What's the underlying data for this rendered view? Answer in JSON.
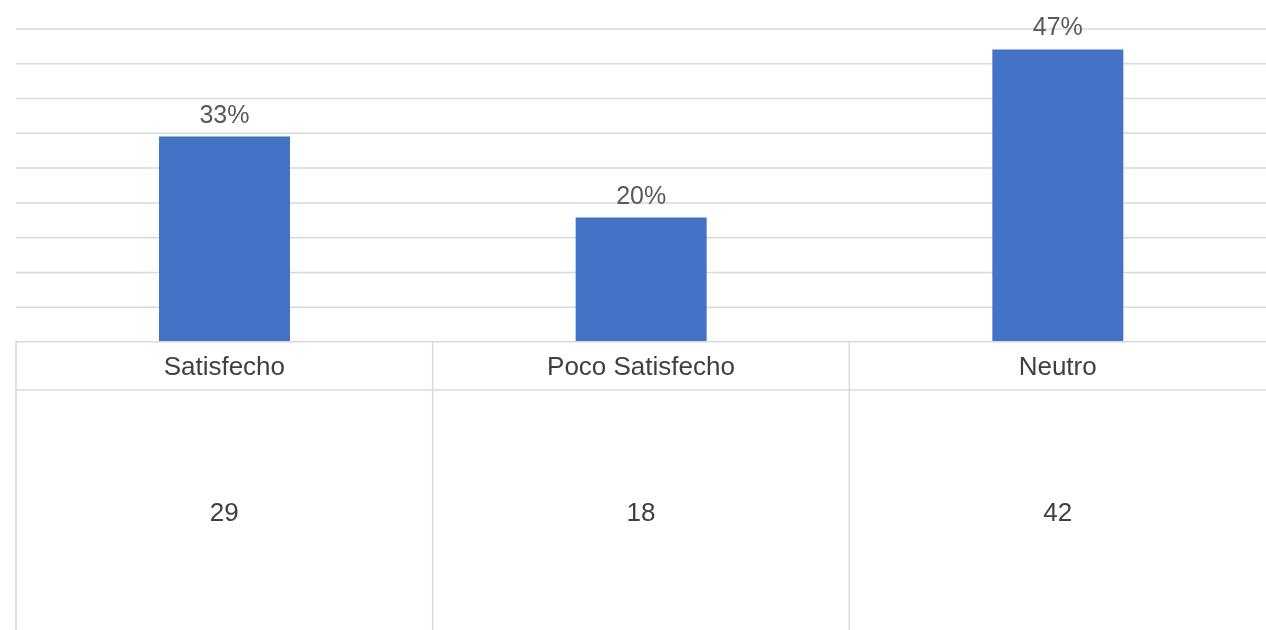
{
  "chart_data": {
    "type": "bar",
    "categories": [
      "Satisfecho",
      "Poco Satisfecho",
      "Neutro"
    ],
    "values": [
      33,
      20,
      47
    ],
    "color": "#4472c4",
    "value_labels": [
      "33%",
      "20%",
      "47%"
    ],
    "annotations": [
      "29",
      "18",
      "42"
    ],
    "tick_labels": "x",
    "grid": "y"
  }
}
